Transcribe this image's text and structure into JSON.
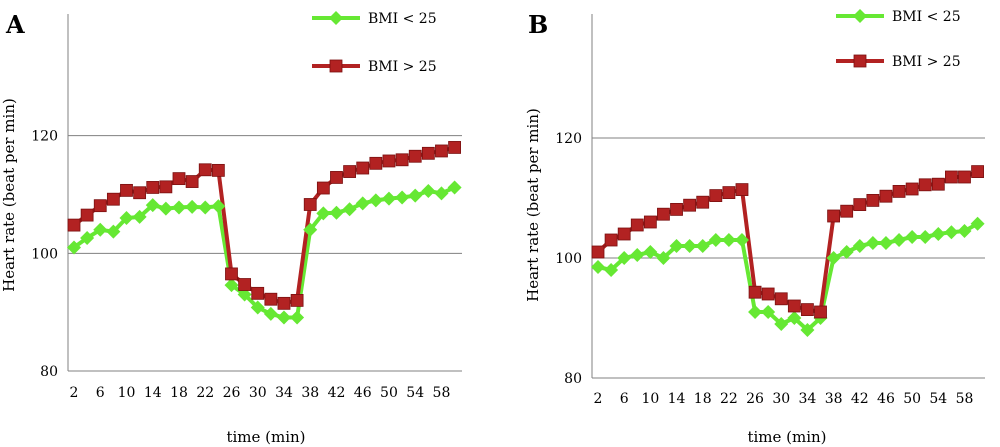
{
  "colors": {
    "bmi_lt_25": "#66e833",
    "bmi_gt_25": "#b22222",
    "axis": "#808080"
  },
  "chart_data": [
    {
      "type": "line",
      "panel_label": "A",
      "title": "",
      "xlabel": "time (min)",
      "ylabel": "Heart rate (beat per min)",
      "ylim": [
        80,
        140
      ],
      "xlim": [
        0,
        60
      ],
      "y_ticks": [
        80,
        100,
        120
      ],
      "y_gridlines": [
        100,
        120
      ],
      "x_ticks": [
        2,
        6,
        10,
        14,
        18,
        22,
        26,
        30,
        34,
        38,
        42,
        46,
        50,
        54,
        58
      ],
      "grid": "horizontal",
      "legend_placement": "top-right",
      "x": [
        2,
        4,
        6,
        8,
        10,
        12,
        14,
        16,
        18,
        20,
        22,
        24,
        26,
        28,
        30,
        32,
        34,
        36,
        38,
        40,
        42,
        44,
        46,
        48,
        50,
        52,
        54,
        56,
        58,
        60
      ],
      "series": [
        {
          "name": "BMI < 25",
          "marker": "diamond",
          "values": [
            101,
            102.6,
            104,
            103.7,
            106,
            106.2,
            108.2,
            107.6,
            107.8,
            107.9,
            107.8,
            108,
            94.6,
            93,
            90.8,
            89.7,
            89.1,
            89.1,
            104,
            106.8,
            106.9,
            107.5,
            108.5,
            109,
            109.3,
            109.5,
            109.8,
            110.6,
            110.2,
            111.2
          ]
        },
        {
          "name": "BMI > 25",
          "marker": "square",
          "values": [
            104.8,
            106.5,
            108.1,
            109.2,
            110.7,
            110.3,
            111.2,
            111.3,
            112.7,
            112.2,
            114.2,
            114.1,
            96.5,
            94.7,
            93.2,
            92.2,
            91.5,
            92,
            108.3,
            111.1,
            112.9,
            113.9,
            114.5,
            115.3,
            115.7,
            115.9,
            116.5,
            117,
            117.4,
            118
          ]
        }
      ]
    },
    {
      "type": "line",
      "panel_label": "B",
      "title": "",
      "xlabel": "time (min)",
      "ylabel": "Heart rate (beat per min)",
      "ylim": [
        80,
        140
      ],
      "xlim": [
        0,
        60
      ],
      "y_ticks": [
        80,
        100,
        120
      ],
      "y_gridlines": [
        100,
        120
      ],
      "x_ticks": [
        2,
        6,
        10,
        14,
        18,
        22,
        26,
        30,
        34,
        38,
        42,
        46,
        50,
        54,
        58
      ],
      "grid": "horizontal",
      "legend_placement": "top-right",
      "x": [
        2,
        4,
        6,
        8,
        10,
        12,
        14,
        16,
        18,
        20,
        22,
        24,
        26,
        28,
        30,
        32,
        34,
        36,
        38,
        40,
        42,
        44,
        46,
        48,
        50,
        52,
        54,
        56,
        58,
        60
      ],
      "series": [
        {
          "name": "BMI < 25",
          "marker": "diamond",
          "values": [
            98.5,
            98,
            100,
            100.5,
            101,
            100,
            102,
            102,
            102,
            103,
            103,
            103,
            91,
            91,
            89,
            90,
            88,
            90,
            100,
            101,
            102,
            102.5,
            102.5,
            103,
            103.5,
            103.5,
            104,
            104.3,
            104.5,
            105.7
          ]
        },
        {
          "name": "BMI > 25",
          "marker": "square",
          "values": [
            101,
            103,
            104,
            105.5,
            106,
            107.3,
            108.1,
            108.8,
            109.3,
            110.4,
            110.9,
            111.4,
            94.3,
            94,
            93.2,
            92,
            91.4,
            91,
            107,
            107.8,
            108.9,
            109.6,
            110.3,
            111.1,
            111.5,
            112.2,
            112.3,
            113.5,
            113.5,
            114.4
          ]
        }
      ]
    }
  ]
}
